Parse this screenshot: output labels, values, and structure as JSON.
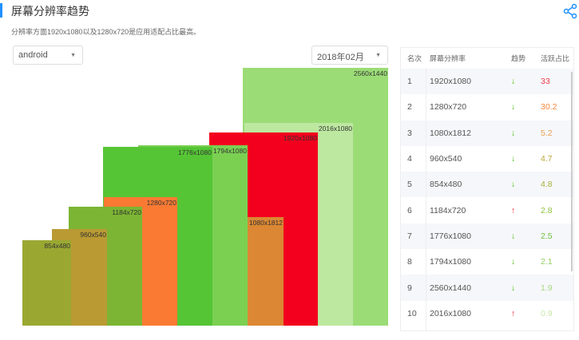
{
  "header": {
    "title": "屏幕分辨率趋势",
    "subtitle": "分辨率方面1920x1080以及1280x720是应用适配占比最高。",
    "share_icon": "share-icon",
    "accent": "#1e90ff"
  },
  "filters": {
    "platform": "android",
    "month": "2018年02月"
  },
  "chart_data": {
    "type": "rectangle-area",
    "items": [
      {
        "label": "2560x1440",
        "color": "#9bdc76"
      },
      {
        "label": "2016x1080",
        "color": "#bde8a0"
      },
      {
        "label": "1920x1080",
        "color": "#f2001d"
      },
      {
        "label": "1794x1080",
        "color": "#7bd052"
      },
      {
        "label": "1776x1080",
        "color": "#55c535"
      },
      {
        "label": "1280x720",
        "color": "#fb7a33"
      },
      {
        "label": "1184x720",
        "color": "#7bb533"
      },
      {
        "label": "1080x1812",
        "color": "#dc8733"
      },
      {
        "label": "960x540",
        "color": "#b99a33"
      },
      {
        "label": "854x480",
        "color": "#9aa832"
      }
    ]
  },
  "table": {
    "headers": [
      "名次",
      "屏幕分辨率",
      "趋势",
      "活跃占比"
    ],
    "rows": [
      {
        "rank": "1",
        "res": "1920x1080",
        "trend": "↓",
        "trend_color": "#52c41a",
        "pct": "33",
        "pct_color": "#f23a4c"
      },
      {
        "rank": "2",
        "res": "1280x720",
        "trend": "↓",
        "trend_color": "#52c41a",
        "pct": "30.2",
        "pct_color": "#f4883a"
      },
      {
        "rank": "3",
        "res": "1080x1812",
        "trend": "↓",
        "trend_color": "#52c41a",
        "pct": "5.2",
        "pct_color": "#e8a050"
      },
      {
        "rank": "4",
        "res": "960x540",
        "trend": "↓",
        "trend_color": "#52c41a",
        "pct": "4.7",
        "pct_color": "#b8a838"
      },
      {
        "rank": "5",
        "res": "854x480",
        "trend": "↓",
        "trend_color": "#52c41a",
        "pct": "4.8",
        "pct_color": "#a8b03a"
      },
      {
        "rank": "6",
        "res": "1184x720",
        "trend": "↑",
        "trend_color": "#f5222d",
        "pct": "2.8",
        "pct_color": "#90c040"
      },
      {
        "rank": "7",
        "res": "1776x1080",
        "trend": "↓",
        "trend_color": "#52c41a",
        "pct": "2.5",
        "pct_color": "#6cc040"
      },
      {
        "rank": "8",
        "res": "1794x1080",
        "trend": "↓",
        "trend_color": "#52c41a",
        "pct": "2.1",
        "pct_color": "#90d060"
      },
      {
        "rank": "9",
        "res": "2560x1440",
        "trend": "↓",
        "trend_color": "#52c41a",
        "pct": "1.9",
        "pct_color": "#a8d880"
      },
      {
        "rank": "10",
        "res": "2016x1080",
        "trend": "↑",
        "trend_color": "#f5222d",
        "pct": "0.9",
        "pct_color": "#c8e8a8"
      }
    ]
  }
}
